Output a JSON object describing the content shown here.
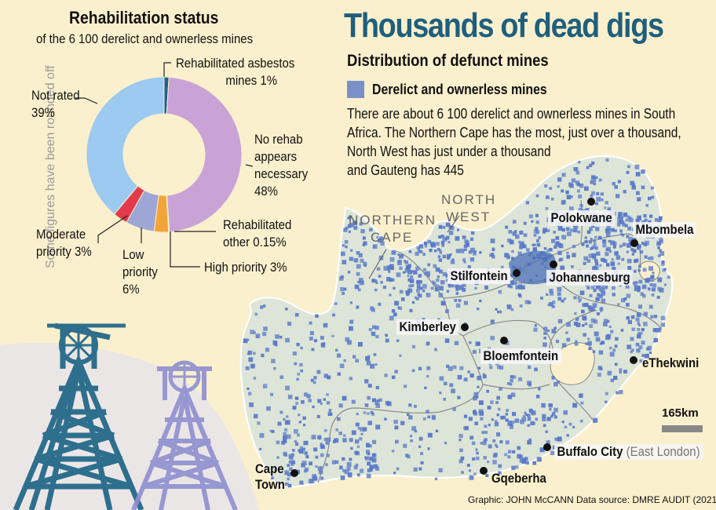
{
  "header": {
    "title": "Thousands of dead digs",
    "subtitle": "Distribution of defunct mines",
    "legend_label": "Derelict and ownerless mines",
    "legend_color": "#7a90c9",
    "intro": [
      "There are about 6 100 derelict and ownerless mines in South",
      "Africa. The Northern Cape has the most, just over a thousand,",
      "North West has just under a thousand",
      "and Gauteng has 445"
    ]
  },
  "donut": {
    "title": "Rehabilitation status",
    "subtitle": "of the 6 100 derelict and ownerless mines",
    "note": "Some figures have been rounded off",
    "segments": [
      {
        "label": "Rehabilitated asbestos mines",
        "value": 1,
        "color": "#1f5f8f",
        "label_lines": [
          "Rehabilitated asbestos",
          "mines  1%"
        ]
      },
      {
        "label": "No rehab appears necessary",
        "value": 48,
        "color": "#c9a3d6",
        "label_lines": [
          "No rehab",
          "appears",
          "necessary",
          "48%"
        ]
      },
      {
        "label": "Rehabilitated other",
        "value": 0.15,
        "color": "#8a8a8a",
        "label_lines": [
          "Rehabilitated",
          "other  0.15%"
        ]
      },
      {
        "label": "High priority",
        "value": 3,
        "color": "#f2a33a",
        "label_lines": [
          "High priority  3%"
        ]
      },
      {
        "label": "Low priority",
        "value": 6,
        "color": "#9ea6d6",
        "label_lines": [
          "Low",
          "priority",
          "6%"
        ]
      },
      {
        "label": "Moderate priority",
        "value": 3,
        "color": "#e23a4a",
        "label_lines": [
          "Moderate",
          "priority  3%"
        ]
      },
      {
        "label": "Not rated",
        "value": 39,
        "color": "#9ccaf0",
        "label_lines": [
          "Not rated",
          "39%"
        ]
      }
    ]
  },
  "map": {
    "provinces": [
      {
        "name": "NORTHERN CAPE",
        "lines": [
          "NORTHERN",
          "CAPE"
        ]
      },
      {
        "name": "NORTH WEST",
        "lines": [
          "NORTH",
          "WEST"
        ]
      }
    ],
    "cities": [
      {
        "name": "Polokwane"
      },
      {
        "name": "Mbombela"
      },
      {
        "name": "Stilfontein"
      },
      {
        "name": "Johannesburg"
      },
      {
        "name": "Kimberley"
      },
      {
        "name": "Bloemfontein"
      },
      {
        "name": "eThekwini"
      },
      {
        "name": "Buffalo City",
        "extra": "(East London)"
      },
      {
        "name": "Cape Town",
        "lines": [
          "Cape",
          "Town"
        ]
      },
      {
        "name": "Gqeberha"
      }
    ],
    "scale_label": "165km",
    "land_color": "#dde5d8",
    "dot_color": "#5a7ac8"
  },
  "credit": "Graphic: JOHN McCANN  Data source: DMRE AUDIT (2021)"
}
